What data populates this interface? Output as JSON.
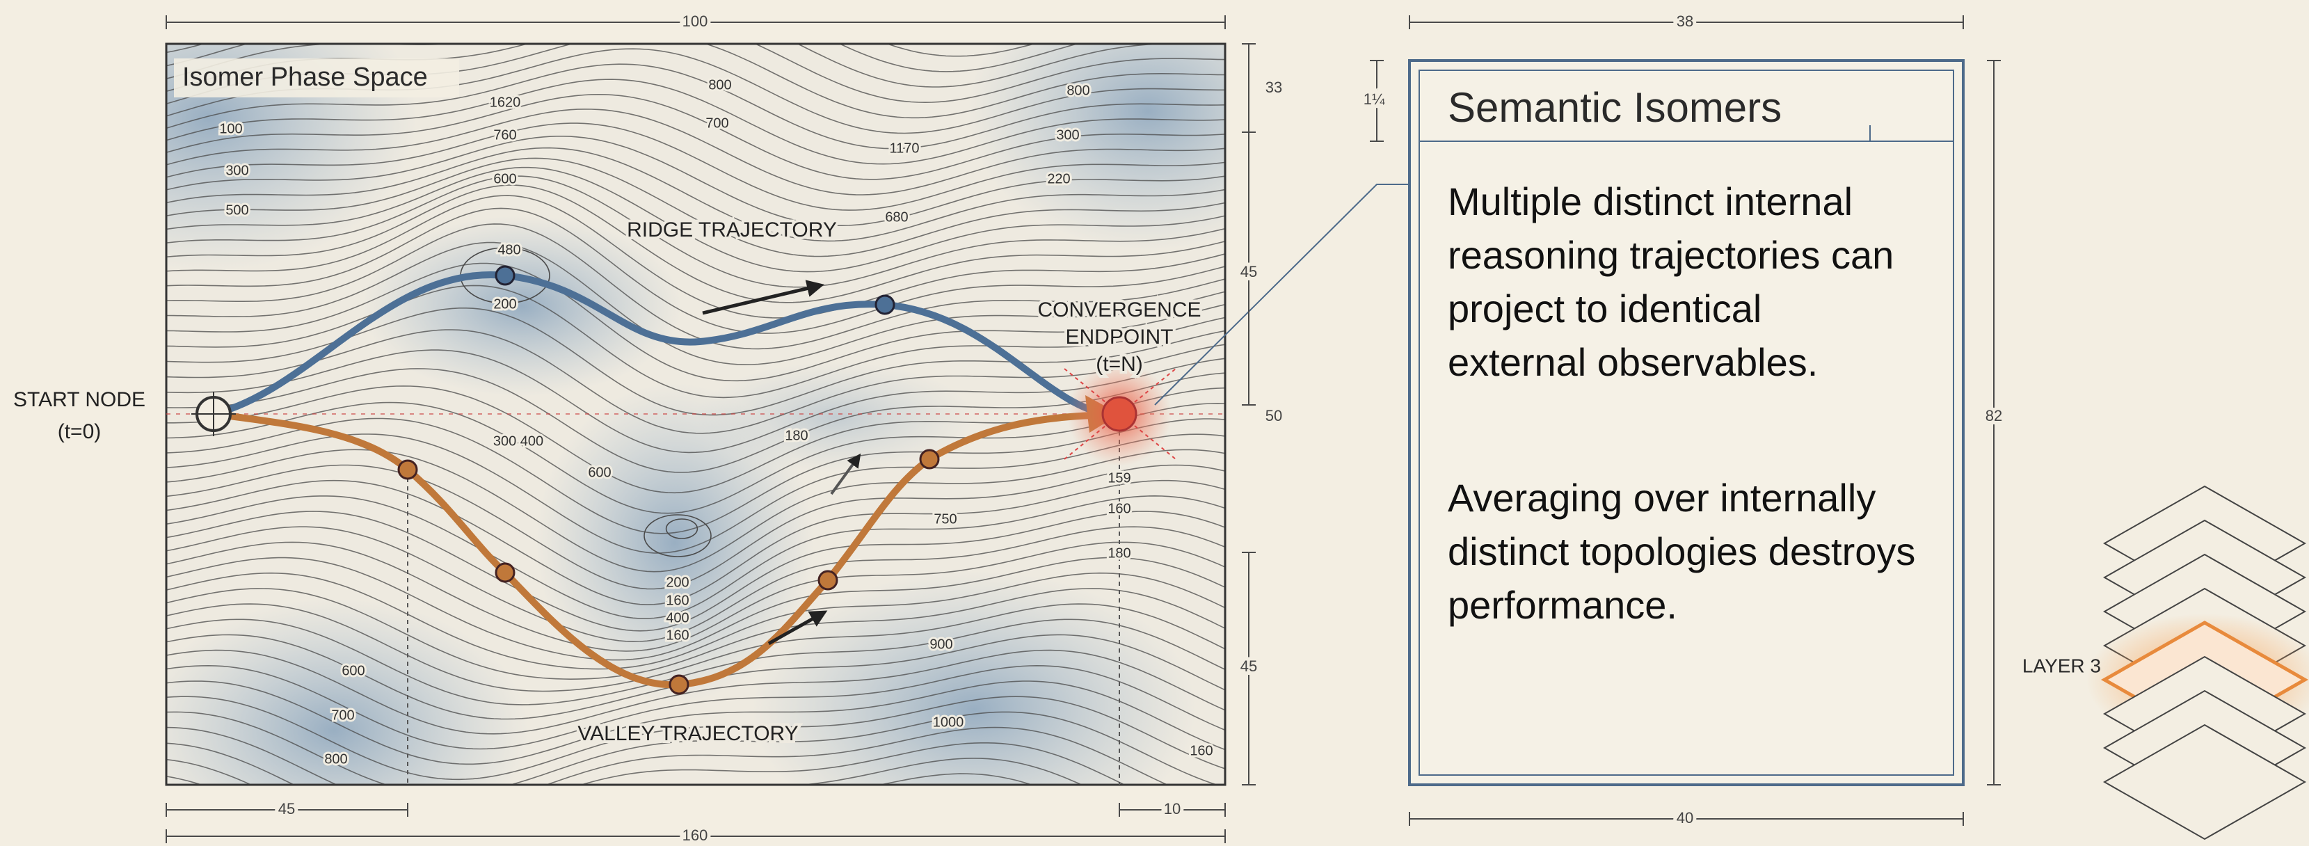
{
  "map": {
    "title": "Isomer Phase Space",
    "start_label": "START NODE",
    "start_time": "(t=0)",
    "ridge_label": "RIDGE TRAJECTORY",
    "valley_label": "VALLEY TRAJECTORY",
    "endpoint_label": [
      "CONVERGENCE",
      "ENDPOINT",
      "(t=N)"
    ],
    "contour_labels": [
      "800",
      "1620",
      "760",
      "600",
      "100",
      "300",
      "500",
      "700",
      "800",
      "300",
      "220",
      "1170",
      "680",
      "480",
      "200",
      "300 400",
      "600",
      "180",
      "159",
      "160",
      "180",
      "750",
      "200",
      "160",
      "400",
      "160",
      "900",
      "600",
      "700",
      "800",
      "1000",
      "160"
    ]
  },
  "dimensions": {
    "map_width": "100",
    "map_total": "160",
    "map_left": "45",
    "map_right": "10",
    "map_right_1": "33",
    "map_right_2": "45",
    "map_right_3": "50",
    "map_right_4": "45",
    "card_top": "38",
    "card_bottom": "40",
    "card_header": "1¼",
    "card_height": "82"
  },
  "card": {
    "title": "Semantic Isomers",
    "paragraphs": [
      [
        "Multiple distinct internal",
        "reasoning trajectories can",
        "project to identical",
        "external observables."
      ],
      [
        "Averaging over internally",
        "distinct topologies destroys",
        "performance."
      ]
    ]
  },
  "layer_stack": {
    "label": "LAYER 3"
  }
}
